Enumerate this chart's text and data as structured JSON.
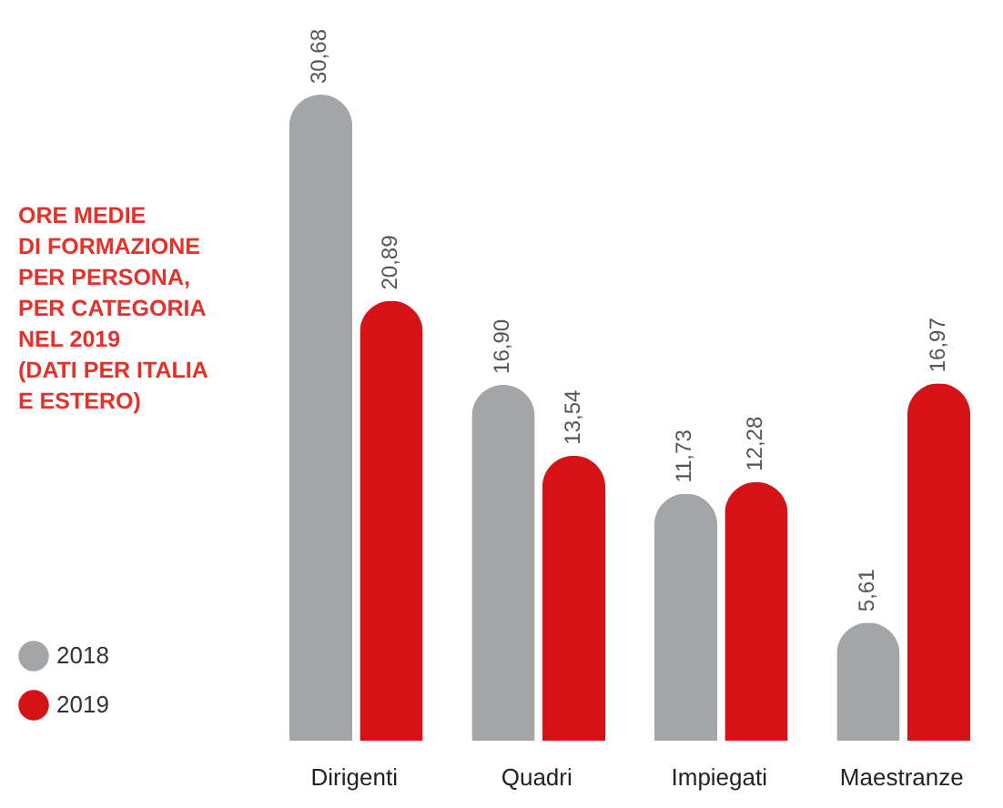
{
  "chart_data": {
    "type": "bar",
    "title": "ORE MEDIE\nDI FORMAZIONE\nPER PERSONA,\nPER CATEGORIA\nNEL 2019\n(DATI PER ITALIA\nE ESTERO)",
    "categories": [
      "Dirigenti",
      "Quadri",
      "Impiegati",
      "Maestranze"
    ],
    "series": [
      {
        "name": "2018",
        "color": "#a3a5a7",
        "values": [
          30.68,
          16.9,
          11.73,
          5.61
        ],
        "value_labels": [
          "30,68",
          "16,90",
          "11,73",
          "5,61"
        ]
      },
      {
        "name": "2019",
        "color": "#d51317",
        "values": [
          20.89,
          13.54,
          12.28,
          16.97
        ],
        "value_labels": [
          "20,89",
          "13,54",
          "12,28",
          "16,97"
        ]
      }
    ],
    "legend": "bottom left",
    "grid": false
  }
}
